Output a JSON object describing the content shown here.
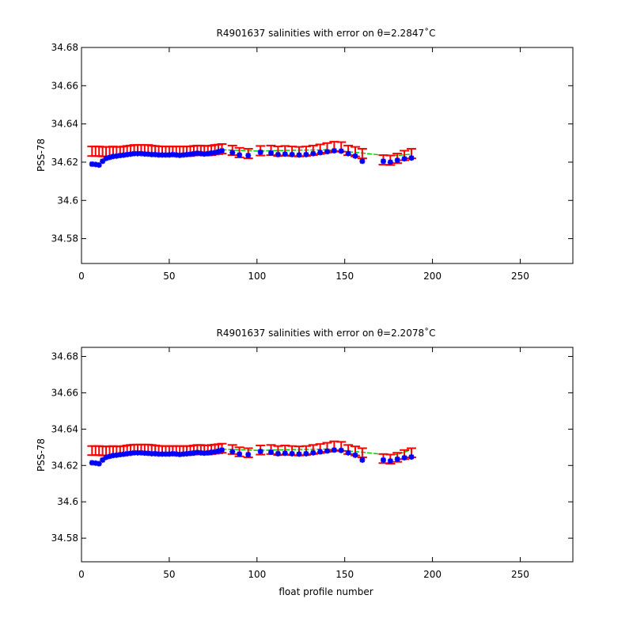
{
  "chart_data": [
    {
      "type": "scatter",
      "title": "R4901637 salinities with error on θ=2.2847˚C",
      "xlabel": "",
      "ylabel": "PSS-78",
      "xlim": [
        0,
        280
      ],
      "ylim": [
        34.567,
        34.68
      ],
      "xticks": [
        0,
        50,
        100,
        150,
        200,
        250
      ],
      "yticks": [
        34.58,
        34.6,
        34.62,
        34.64,
        34.66,
        34.68
      ],
      "grid": false,
      "colors": {
        "error_bars": "#ff0000",
        "float_salinity": "#0000ff",
        "mapped_salinity": "#00cc00"
      },
      "series": [
        {
          "kind": "errorbar",
          "x": [
            6,
            8,
            10,
            12,
            14,
            16,
            18,
            20,
            22,
            24,
            26,
            28,
            30,
            32,
            34,
            36,
            38,
            40,
            42,
            44,
            46,
            48,
            50,
            52,
            54,
            56,
            58,
            60,
            62,
            64,
            66,
            68,
            70,
            72,
            74,
            76,
            78,
            80,
            86,
            90,
            95,
            102,
            108,
            112,
            116,
            120,
            124,
            128,
            132,
            136,
            140,
            144,
            148,
            152,
            156,
            160,
            172,
            176,
            180,
            184,
            188
          ],
          "y": [
            34.6257,
            34.6257,
            34.6257,
            34.6255,
            34.6255,
            34.6255,
            34.6257,
            34.6255,
            34.6255,
            34.6257,
            34.626,
            34.6262,
            34.6265,
            34.6265,
            34.6265,
            34.6265,
            34.6265,
            34.6262,
            34.626,
            34.6258,
            34.6257,
            34.6257,
            34.6257,
            34.6257,
            34.6257,
            34.6257,
            34.6257,
            34.6257,
            34.6257,
            34.626,
            34.6262,
            34.6262,
            34.626,
            34.626,
            34.6262,
            34.6265,
            34.6267,
            34.627,
            34.6262,
            34.625,
            34.6245,
            34.626,
            34.6262,
            34.6257,
            34.626,
            34.6257,
            34.6255,
            34.6257,
            34.6262,
            34.6268,
            34.6275,
            34.6282,
            34.628,
            34.6262,
            34.6255,
            34.6245,
            34.6212,
            34.621,
            34.622,
            34.6235,
            34.6245
          ],
          "err": [
            0.0025,
            0.0025,
            0.0025,
            0.0025,
            0.0025,
            0.0025,
            0.0025,
            0.0025,
            0.0025,
            0.0025,
            0.0025,
            0.0025,
            0.0025,
            0.0025,
            0.0025,
            0.0025,
            0.0025,
            0.0025,
            0.0025,
            0.0025,
            0.0025,
            0.0025,
            0.0025,
            0.0025,
            0.0025,
            0.0025,
            0.0025,
            0.0025,
            0.0025,
            0.0025,
            0.0025,
            0.0025,
            0.0025,
            0.0025,
            0.0025,
            0.0025,
            0.0025,
            0.0025,
            0.0025,
            0.0025,
            0.0025,
            0.0025,
            0.0025,
            0.0025,
            0.0025,
            0.0025,
            0.0025,
            0.0025,
            0.0025,
            0.0025,
            0.0025,
            0.0025,
            0.0025,
            0.0025,
            0.0025,
            0.0025,
            0.0025,
            0.0025,
            0.0025,
            0.0025,
            0.0025
          ]
        },
        {
          "kind": "points",
          "x": [
            6,
            8,
            10,
            12,
            14,
            16,
            18,
            20,
            22,
            24,
            26,
            28,
            30,
            32,
            34,
            36,
            38,
            40,
            42,
            44,
            46,
            48,
            50,
            52,
            54,
            56,
            58,
            60,
            62,
            64,
            66,
            68,
            70,
            72,
            74,
            76,
            78,
            80,
            86,
            90,
            95,
            102,
            108,
            112,
            116,
            120,
            124,
            128,
            132,
            136,
            140,
            144,
            148,
            152,
            156,
            160,
            172,
            176,
            180,
            184,
            188
          ],
          "y": [
            34.619,
            34.6188,
            34.6185,
            34.6205,
            34.622,
            34.6225,
            34.623,
            34.6232,
            34.6235,
            34.6237,
            34.624,
            34.6242,
            34.6245,
            34.6245,
            34.6245,
            34.6243,
            34.6242,
            34.624,
            34.624,
            34.6238,
            34.6238,
            34.6238,
            34.6238,
            34.624,
            34.6238,
            34.6236,
            34.6238,
            34.624,
            34.6242,
            34.6245,
            34.6247,
            34.6245,
            34.6243,
            34.6245,
            34.6248,
            34.625,
            34.6255,
            34.626,
            34.625,
            34.6238,
            34.6235,
            34.6252,
            34.6248,
            34.624,
            34.6242,
            34.624,
            34.6238,
            34.624,
            34.6245,
            34.625,
            34.6255,
            34.626,
            34.6258,
            34.6245,
            34.6232,
            34.6205,
            34.6205,
            34.62,
            34.621,
            34.6218,
            34.6222
          ]
        },
        {
          "kind": "line",
          "x": [
            80,
            100,
            120,
            140,
            160,
            170,
            180,
            188
          ],
          "y": [
            34.6265,
            34.6258,
            34.6262,
            34.6265,
            34.6248,
            34.6238,
            34.6235,
            34.6242
          ]
        }
      ]
    },
    {
      "type": "scatter",
      "title": "R4901637 salinities with error on θ=2.2078˚C",
      "xlabel": "float profile number",
      "ylabel": "PSS-78",
      "xlim": [
        0,
        280
      ],
      "ylim": [
        34.567,
        34.685
      ],
      "xticks": [
        0,
        50,
        100,
        150,
        200,
        250
      ],
      "yticks": [
        34.58,
        34.6,
        34.62,
        34.64,
        34.66,
        34.68
      ],
      "grid": false,
      "colors": {
        "error_bars": "#ff0000",
        "float_salinity": "#0000ff",
        "mapped_salinity": "#00cc00"
      },
      "series": [
        {
          "kind": "errorbar",
          "x": [
            6,
            8,
            10,
            12,
            14,
            16,
            18,
            20,
            22,
            24,
            26,
            28,
            30,
            32,
            34,
            36,
            38,
            40,
            42,
            44,
            46,
            48,
            50,
            52,
            54,
            56,
            58,
            60,
            62,
            64,
            66,
            68,
            70,
            72,
            74,
            76,
            78,
            80,
            86,
            90,
            95,
            102,
            108,
            112,
            116,
            120,
            124,
            128,
            132,
            136,
            140,
            144,
            148,
            152,
            156,
            160,
            172,
            176,
            180,
            184,
            188
          ],
          "y": [
            34.6282,
            34.6282,
            34.6282,
            34.628,
            34.628,
            34.628,
            34.6282,
            34.628,
            34.628,
            34.6282,
            34.6285,
            34.6288,
            34.629,
            34.629,
            34.629,
            34.629,
            34.629,
            34.6288,
            34.6285,
            34.6283,
            34.6282,
            34.6282,
            34.6282,
            34.6282,
            34.6282,
            34.6282,
            34.6282,
            34.6282,
            34.6282,
            34.6285,
            34.6288,
            34.6288,
            34.6285,
            34.6285,
            34.6288,
            34.629,
            34.6292,
            34.6295,
            34.6288,
            34.6275,
            34.627,
            34.6285,
            34.6288,
            34.6282,
            34.6285,
            34.6282,
            34.628,
            34.6282,
            34.6288,
            34.6293,
            34.63,
            34.6308,
            34.6305,
            34.6288,
            34.628,
            34.627,
            34.6238,
            34.6235,
            34.6245,
            34.626,
            34.627
          ],
          "err": [
            0.0025,
            0.0025,
            0.0025,
            0.0025,
            0.0025,
            0.0025,
            0.0025,
            0.0025,
            0.0025,
            0.0025,
            0.0025,
            0.0025,
            0.0025,
            0.0025,
            0.0025,
            0.0025,
            0.0025,
            0.0025,
            0.0025,
            0.0025,
            0.0025,
            0.0025,
            0.0025,
            0.0025,
            0.0025,
            0.0025,
            0.0025,
            0.0025,
            0.0025,
            0.0025,
            0.0025,
            0.0025,
            0.0025,
            0.0025,
            0.0025,
            0.0025,
            0.0025,
            0.0025,
            0.0025,
            0.0025,
            0.0025,
            0.0025,
            0.0025,
            0.0025,
            0.0025,
            0.0025,
            0.0025,
            0.0025,
            0.0025,
            0.0025,
            0.0025,
            0.0025,
            0.0025,
            0.0025,
            0.0025,
            0.0025,
            0.0025,
            0.0025,
            0.0025,
            0.0025,
            0.0025
          ]
        },
        {
          "kind": "points",
          "x": [
            6,
            8,
            10,
            12,
            14,
            16,
            18,
            20,
            22,
            24,
            26,
            28,
            30,
            32,
            34,
            36,
            38,
            40,
            42,
            44,
            46,
            48,
            50,
            52,
            54,
            56,
            58,
            60,
            62,
            64,
            66,
            68,
            70,
            72,
            74,
            76,
            78,
            80,
            86,
            90,
            95,
            102,
            108,
            112,
            116,
            120,
            124,
            128,
            132,
            136,
            140,
            144,
            148,
            152,
            156,
            160,
            172,
            176,
            180,
            184,
            188
          ],
          "y": [
            34.6215,
            34.6213,
            34.621,
            34.623,
            34.6245,
            34.625,
            34.6255,
            34.6257,
            34.626,
            34.6262,
            34.6265,
            34.6267,
            34.627,
            34.627,
            34.627,
            34.6268,
            34.6267,
            34.6265,
            34.6265,
            34.6263,
            34.6263,
            34.6263,
            34.6263,
            34.6265,
            34.6263,
            34.6261,
            34.6263,
            34.6265,
            34.6267,
            34.627,
            34.6272,
            34.627,
            34.6268,
            34.627,
            34.6273,
            34.6275,
            34.628,
            34.6285,
            34.6275,
            34.6263,
            34.626,
            34.6277,
            34.6273,
            34.6265,
            34.6267,
            34.6265,
            34.6263,
            34.6265,
            34.627,
            34.6275,
            34.628,
            34.6285,
            34.6283,
            34.627,
            34.6257,
            34.623,
            34.623,
            34.6225,
            34.6235,
            34.6243,
            34.6247
          ]
        },
        {
          "kind": "line",
          "x": [
            80,
            100,
            120,
            140,
            160,
            170,
            180,
            188
          ],
          "y": [
            34.629,
            34.6283,
            34.6287,
            34.629,
            34.6273,
            34.6263,
            34.626,
            34.6287
          ]
        }
      ]
    }
  ]
}
